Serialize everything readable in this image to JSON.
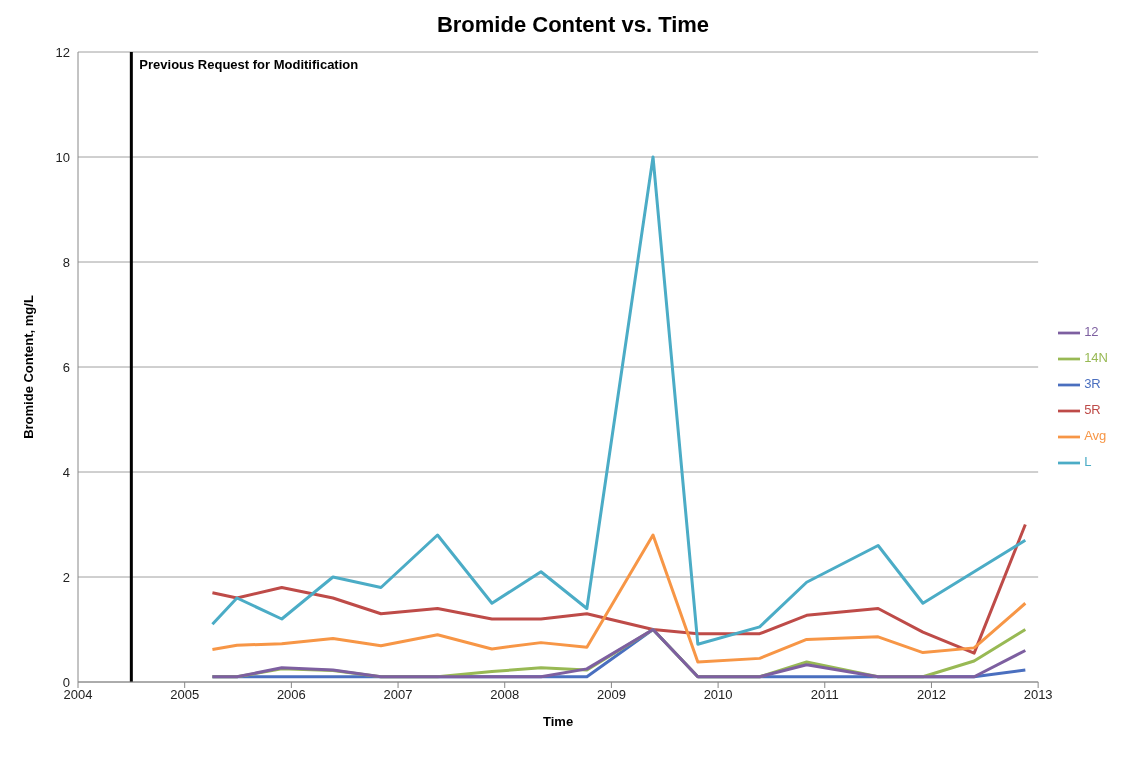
{
  "chart_data": {
    "type": "line",
    "title": "Bromide Content vs. Time",
    "xlabel": "Time",
    "ylabel": "Bromide Content, mg/L",
    "x": [
      2005.26,
      2005.49,
      2005.91,
      2006.39,
      2006.84,
      2007.37,
      2007.88,
      2008.34,
      2008.77,
      2009.39,
      2009.81,
      2010.39,
      2010.83,
      2011.5,
      2011.92,
      2012.4,
      2012.88
    ],
    "series": [
      {
        "name": "3R",
        "color": "#4a6fbf",
        "values": [
          0.1,
          0.1,
          0.1,
          0.1,
          0.1,
          0.1,
          0.1,
          0.1,
          0.1,
          1.0,
          0.1,
          0.1,
          0.1,
          0.1,
          0.1,
          0.1,
          0.23
        ]
      },
      {
        "name": "5R",
        "color": "#be4b48",
        "values": [
          1.7,
          1.6,
          1.8,
          1.6,
          1.3,
          1.4,
          1.2,
          1.2,
          1.3,
          1.0,
          0.92,
          0.92,
          1.27,
          1.4,
          0.95,
          0.55,
          3.0
        ]
      },
      {
        "name": "14N",
        "color": "#98b954",
        "values": [
          0.1,
          0.1,
          0.25,
          0.22,
          0.1,
          0.1,
          0.2,
          0.27,
          0.23,
          1.0,
          0.1,
          0.1,
          0.38,
          0.1,
          0.1,
          0.4,
          1.0
        ]
      },
      {
        "name": "12",
        "color": "#7d5fa0",
        "values": [
          0.1,
          0.1,
          0.27,
          0.23,
          0.1,
          0.1,
          0.1,
          0.1,
          0.25,
          1.0,
          0.1,
          0.1,
          0.33,
          0.1,
          0.1,
          0.1,
          0.6
        ]
      },
      {
        "name": "L",
        "color": "#4bacc6",
        "values": [
          1.1,
          1.6,
          1.2,
          2.0,
          1.8,
          2.8,
          1.5,
          2.1,
          1.4,
          10,
          0.72,
          1.05,
          1.9,
          2.6,
          1.5,
          2.1,
          2.7
        ]
      },
      {
        "name": "Avg",
        "color": "#f79646",
        "values": [
          0.62,
          0.7,
          0.73,
          0.83,
          0.69,
          0.9,
          0.63,
          0.75,
          0.66,
          2.8,
          0.38,
          0.45,
          0.81,
          0.86,
          0.56,
          0.65,
          1.5
        ]
      }
    ],
    "xlim": [
      2004,
      2013
    ],
    "xticks": [
      2004,
      2005,
      2006,
      2007,
      2008,
      2009,
      2010,
      2011,
      2012,
      2013
    ],
    "ylim": [
      0,
      12
    ],
    "yticks": [
      0,
      2,
      4,
      6,
      8,
      10,
      12
    ],
    "ref_lines": [
      {
        "axis": "x",
        "value": 2004.5,
        "label": "Previous Request for Moditification",
        "color": "#000000"
      }
    ],
    "grid": "y",
    "legend": "right",
    "marker": "none",
    "line_style": "solid"
  }
}
